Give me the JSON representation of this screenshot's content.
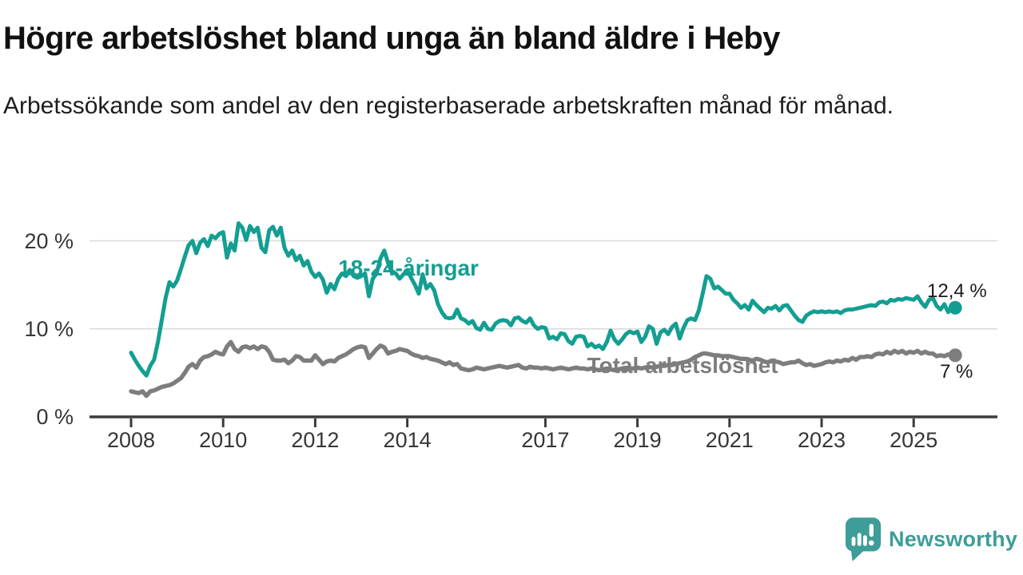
{
  "header": {
    "title": "Högre arbetslöshet bland unga än bland äldre i Heby",
    "subtitle": "Arbetssökande som andel av den registerbaserade arbetskraften månad för månad."
  },
  "chart_data": {
    "type": "line",
    "x_unit": "month",
    "x_start": "2008-01",
    "x_end": "2025-11",
    "xticks": [
      2008,
      2010,
      2012,
      2014,
      2017,
      2019,
      2021,
      2023,
      2025
    ],
    "yticks": [
      {
        "value": 0,
        "label": "0 %"
      },
      {
        "value": 10,
        "label": "10 %"
      },
      {
        "value": 20,
        "label": "20 %"
      }
    ],
    "ylim": [
      0,
      23
    ],
    "grid": "horizontal",
    "legend_position": "inline-labels",
    "series": [
      {
        "name": "18-24-åringar",
        "color": "#149E92",
        "end_label": "12,4 %",
        "end_value": 12.4,
        "values": [
          7.3,
          6.5,
          5.8,
          5.2,
          4.7,
          5.8,
          6.5,
          8.5,
          11.0,
          13.5,
          15.3,
          14.8,
          15.5,
          16.8,
          18.2,
          19.5,
          20.0,
          18.6,
          19.8,
          20.2,
          19.4,
          20.6,
          20.3,
          20.8,
          21.0,
          18.1,
          19.7,
          18.9,
          22.0,
          21.5,
          20.1,
          21.7,
          21.0,
          21.5,
          19.2,
          18.7,
          21.2,
          21.6,
          20.6,
          21.5,
          19.2,
          18.3,
          18.9,
          17.8,
          18.3,
          17.2,
          17.7,
          16.5,
          15.9,
          16.3,
          15.6,
          14.1,
          15.1,
          14.5,
          15.7,
          16.3,
          16.0,
          16.7,
          16.0,
          15.8,
          16.0,
          16.3,
          13.7,
          15.7,
          16.3,
          18.0,
          18.9,
          17.5,
          16.4,
          16.3,
          15.7,
          16.2,
          16.7,
          15.8,
          15.0,
          14.0,
          16.2,
          14.6,
          15.1,
          14.4,
          12.8,
          11.9,
          11.3,
          11.2,
          11.3,
          12.2,
          11.2,
          11.0,
          10.6,
          10.9,
          10.1,
          9.9,
          10.7,
          10.0,
          9.9,
          10.6,
          10.9,
          11.0,
          10.9,
          10.4,
          11.2,
          11.3,
          10.9,
          10.7,
          11.2,
          10.4,
          10.0,
          10.2,
          10.1,
          8.9,
          9.1,
          8.8,
          9.5,
          9.4,
          8.6,
          8.3,
          9.1,
          9.2,
          9.1,
          8.0,
          8.3,
          7.9,
          8.1,
          7.7,
          8.5,
          9.8,
          8.8,
          8.3,
          8.8,
          9.4,
          9.7,
          9.5,
          9.7,
          8.5,
          9.1,
          10.3,
          10.0,
          8.3,
          9.6,
          9.9,
          9.4,
          10.2,
          10.6,
          8.9,
          10.1,
          11.0,
          11.2,
          11.0,
          12.1,
          14.0,
          16.0,
          15.7,
          14.6,
          14.8,
          14.4,
          14.0,
          14.0,
          13.3,
          12.9,
          12.4,
          12.7,
          12.2,
          13.2,
          12.7,
          12.3,
          11.9,
          12.4,
          12.3,
          12.6,
          12.1,
          12.6,
          12.7,
          12.1,
          11.5,
          11.0,
          10.8,
          11.5,
          11.8,
          12.0,
          11.9,
          12.0,
          11.9,
          12.0,
          11.9,
          12.0,
          11.8,
          12.1,
          12.2,
          12.2,
          12.3,
          12.4,
          12.5,
          12.6,
          12.7,
          12.6,
          13.0,
          13.1,
          12.9,
          13.3,
          13.2,
          13.4,
          13.3,
          13.5,
          13.4,
          13.3,
          13.7,
          13.0,
          12.5,
          13.3,
          13.5,
          12.6,
          12.2,
          12.8,
          11.9,
          12.4
        ]
      },
      {
        "name": "Total arbetslöshet",
        "color": "#7D7D7D",
        "end_label": "7 %",
        "end_value": 7.0,
        "values": [
          2.9,
          2.8,
          2.7,
          2.9,
          2.4,
          2.9,
          3.0,
          3.2,
          3.4,
          3.5,
          3.6,
          3.8,
          4.1,
          4.4,
          5.0,
          5.7,
          6.0,
          5.6,
          6.4,
          6.8,
          6.9,
          7.1,
          7.4,
          7.2,
          7.1,
          8.0,
          8.5,
          7.7,
          7.4,
          7.9,
          8.0,
          7.8,
          8.0,
          7.7,
          8.0,
          7.9,
          7.4,
          6.5,
          6.4,
          6.4,
          6.5,
          6.1,
          6.4,
          6.9,
          6.8,
          6.4,
          6.4,
          6.4,
          7.0,
          6.5,
          6.0,
          6.3,
          6.4,
          6.3,
          6.7,
          6.9,
          7.1,
          7.4,
          7.7,
          7.9,
          8.0,
          7.9,
          6.7,
          7.2,
          7.7,
          8.1,
          7.9,
          7.2,
          7.4,
          7.5,
          7.7,
          7.6,
          7.5,
          7.2,
          7.0,
          6.9,
          6.7,
          6.8,
          6.6,
          6.5,
          6.4,
          6.2,
          6.0,
          6.2,
          5.9,
          6.0,
          5.5,
          5.4,
          5.3,
          5.4,
          5.6,
          5.5,
          5.4,
          5.5,
          5.6,
          5.7,
          5.8,
          5.7,
          5.6,
          5.7,
          5.8,
          5.9,
          5.6,
          5.5,
          5.7,
          5.6,
          5.6,
          5.5,
          5.6,
          5.5,
          5.4,
          5.5,
          5.6,
          5.5,
          5.4,
          5.5,
          5.6,
          5.5,
          5.5,
          5.4,
          5.5,
          5.4,
          5.3,
          5.4,
          5.5,
          5.4,
          5.3,
          5.4,
          5.5,
          5.4,
          5.5,
          5.5,
          5.6,
          5.5,
          5.6,
          5.7,
          5.6,
          5.7,
          5.8,
          5.8,
          5.9,
          5.9,
          6.0,
          6.1,
          6.2,
          6.3,
          6.5,
          6.8,
          7.0,
          7.2,
          7.2,
          7.1,
          7.0,
          7.0,
          6.9,
          6.9,
          6.9,
          6.8,
          6.7,
          6.6,
          6.6,
          6.5,
          6.4,
          6.6,
          6.5,
          6.3,
          6.2,
          6.4,
          6.3,
          6.2,
          6.0,
          6.1,
          6.2,
          6.2,
          6.4,
          6.1,
          5.9,
          6.0,
          5.8,
          5.9,
          6.0,
          6.2,
          6.3,
          6.2,
          6.4,
          6.3,
          6.5,
          6.4,
          6.7,
          6.5,
          6.8,
          6.8,
          6.9,
          6.8,
          7.1,
          7.2,
          7.1,
          7.4,
          7.2,
          7.5,
          7.3,
          7.5,
          7.2,
          7.4,
          7.3,
          7.5,
          7.2,
          7.4,
          7.2,
          7.2,
          6.9,
          7.0,
          6.9,
          7.1,
          7.0
        ]
      }
    ],
    "axis_color": "#3B3B3B",
    "gridline_color": "#DCDCDC"
  },
  "footer": {
    "brand": "Newsworthy",
    "brand_color": "#3E9D98"
  }
}
